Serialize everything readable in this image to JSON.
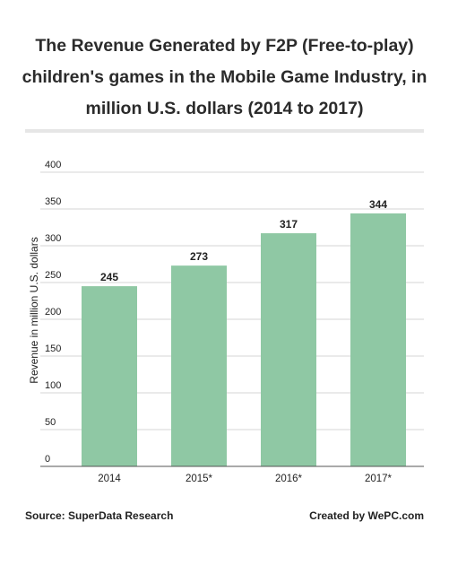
{
  "title": "The Revenue Generated by F2P (Free-to-play) children's games in the Mobile Game Industry, in million U.S. dollars (2014 to 2017)",
  "footer": {
    "source": "Source: SuperData Research",
    "credit": "Created by WePC.com"
  },
  "colors": {
    "bar": "#8fc8a4",
    "grid": "#d6d6d6",
    "axis": "#555555",
    "text": "#222222"
  },
  "chart_data": {
    "type": "bar",
    "categories": [
      "2014",
      "2015*",
      "2016*",
      "2017*"
    ],
    "values": [
      245,
      273,
      317,
      344
    ],
    "ylabel": "Revenue in million U.S. dollars",
    "xlabel": "",
    "ylim": [
      0,
      400
    ],
    "yticks": [
      0,
      50,
      100,
      150,
      200,
      250,
      300,
      350,
      400
    ],
    "grid": true,
    "data_labels": true
  }
}
